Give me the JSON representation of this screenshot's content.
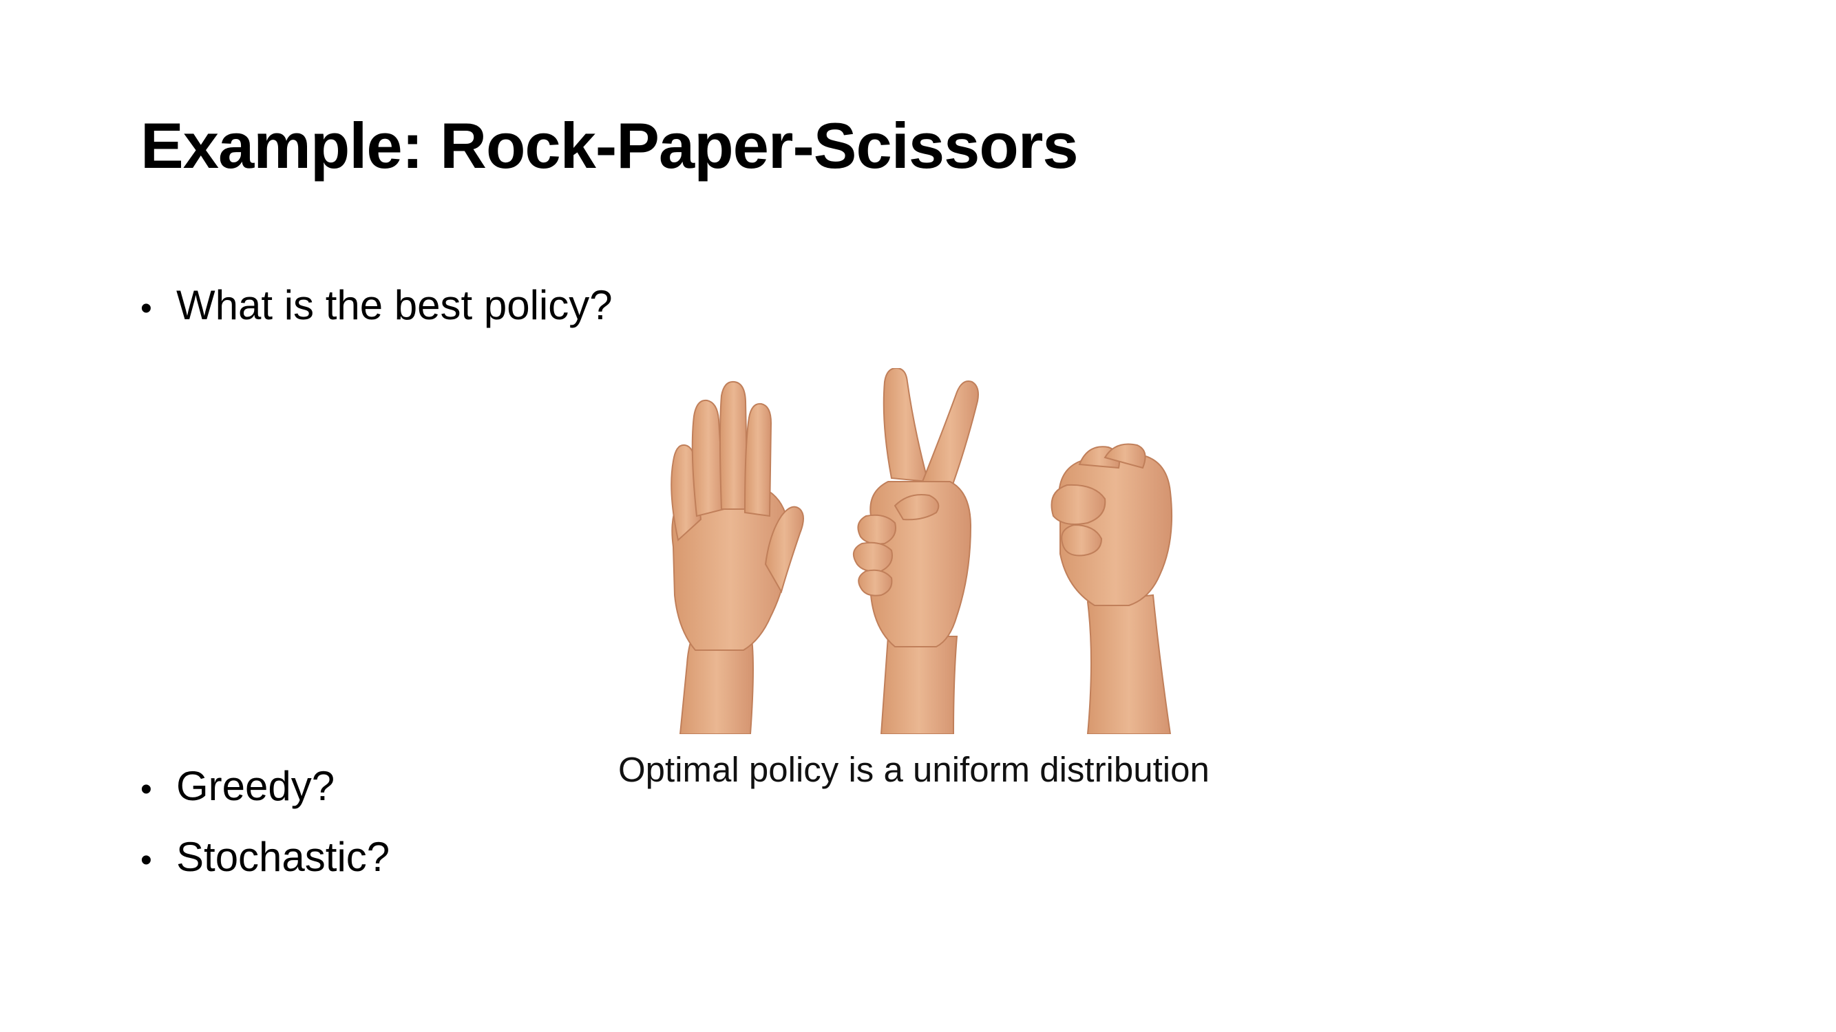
{
  "slide": {
    "title": "Example: Rock-Paper-Scissors",
    "bullets": [
      {
        "marker": "•",
        "text": "What is the best policy?"
      },
      {
        "marker": "•",
        "text": "Greedy?"
      },
      {
        "marker": "•",
        "text": "Stochastic?"
      }
    ],
    "image": {
      "icons": [
        "open-palm-hand-icon",
        "scissors-v-hand-icon",
        "fist-hand-icon"
      ]
    },
    "caption": "Optimal policy is a uniform distribution"
  },
  "colors": {
    "background": "#ffffff",
    "text": "#000000",
    "skin": "#e9b08a",
    "skin_shadow": "#c98a63"
  }
}
